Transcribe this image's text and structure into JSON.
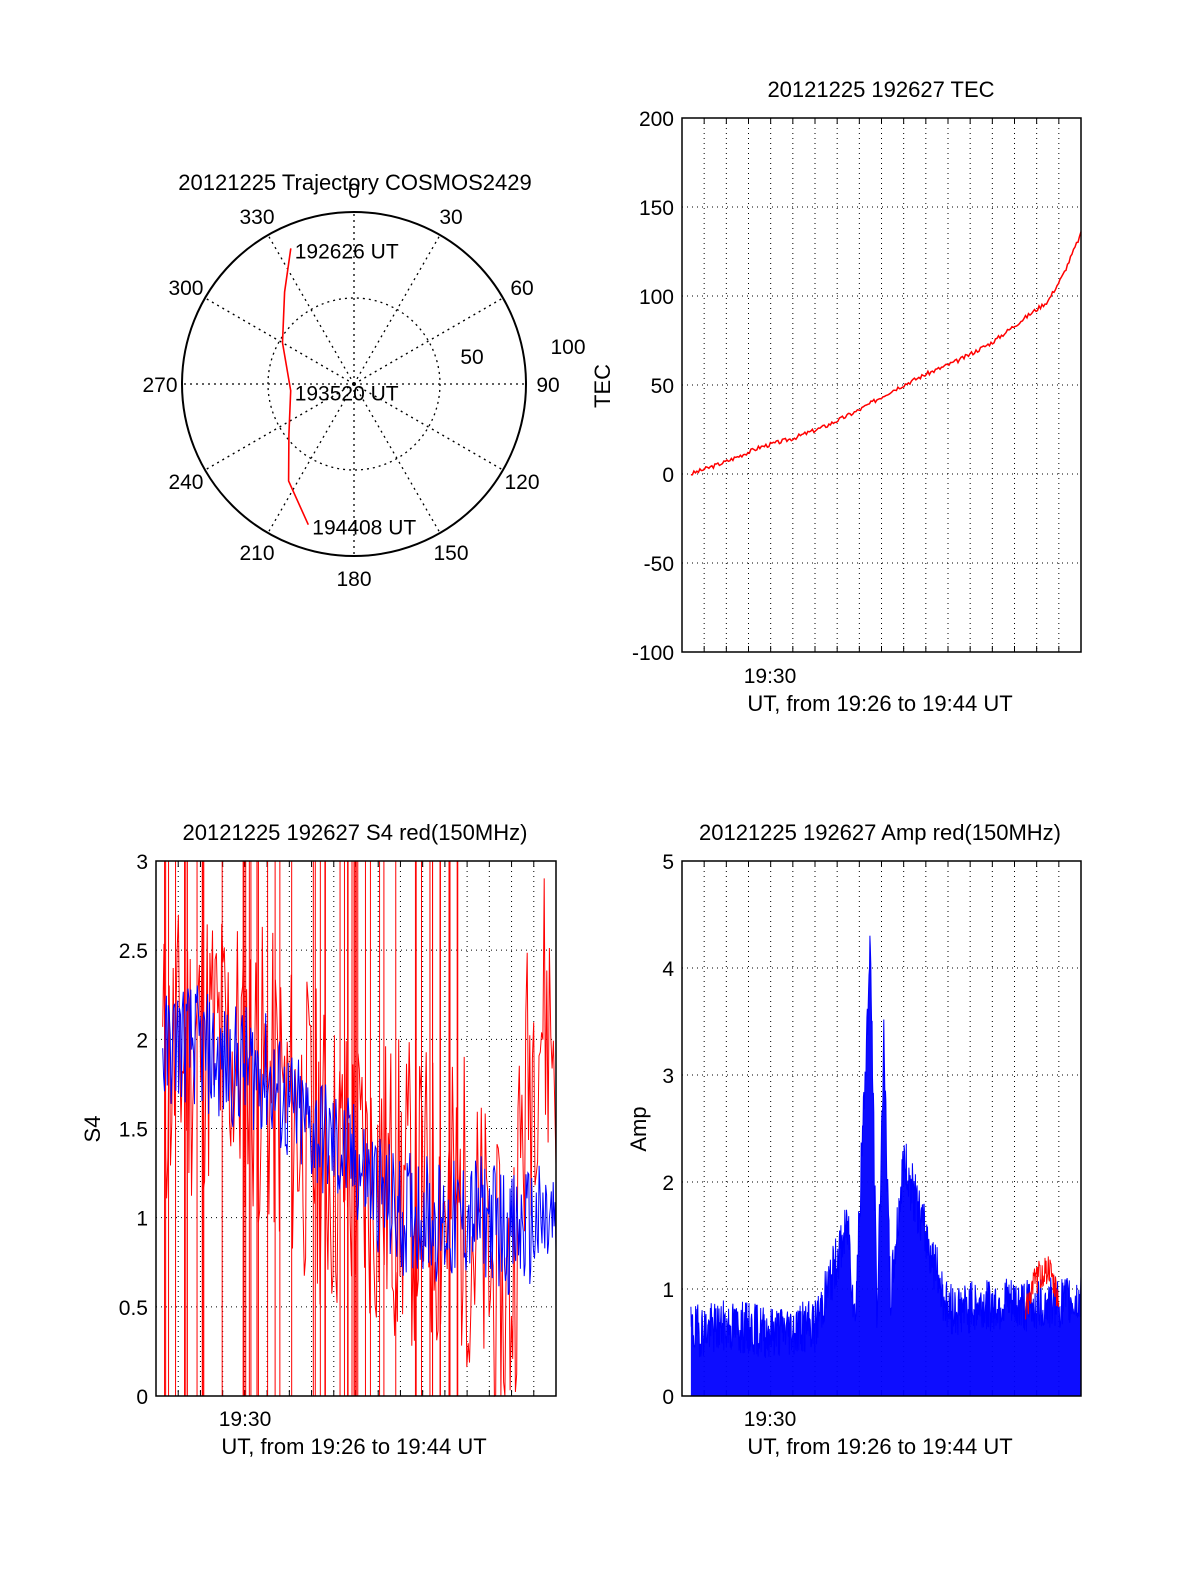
{
  "chart_data": [
    {
      "type": "polar",
      "title": "20121225 Trajectory COSMOS2429",
      "azimuth_labels": [
        "0",
        "30",
        "60",
        "90",
        "120",
        "150",
        "180",
        "210",
        "240",
        "270",
        "300",
        "330"
      ],
      "radial_labels": [
        "50",
        "100"
      ],
      "radial_range": [
        0,
        100
      ],
      "grid": true,
      "series": [
        {
          "color": "#ff0000",
          "points": [
            {
              "az": 335.0,
              "r": 87
            },
            {
              "az": 323.0,
              "r": 67
            },
            {
              "az": 300.0,
              "r": 48
            },
            {
              "az": 264.0,
              "r": 37
            },
            {
              "az": 232.0,
              "r": 48
            },
            {
              "az": 214.0,
              "r": 68
            },
            {
              "az": 198.0,
              "r": 86
            }
          ]
        }
      ],
      "annotations": [
        {
          "text": "192626 UT",
          "az": 335.0,
          "r": 87
        },
        {
          "text": "193520 UT",
          "az": 264.0,
          "r": 37
        },
        {
          "text": "194408 UT",
          "az": 198.0,
          "r": 86
        }
      ]
    },
    {
      "type": "line",
      "title": "20121225 192627 TEC",
      "ylabel": "TEC",
      "xlabel": "UT, from 19:26 to 19:44 UT",
      "x_tick_label": "19:30",
      "xlim_minutes": [
        26.0,
        44.0
      ],
      "x_tick_minute": 30.0,
      "ylim": [
        -100,
        200
      ],
      "yticks": [
        "200",
        "150",
        "100",
        "50",
        "0",
        "-50",
        "-100"
      ],
      "grid": true,
      "series": [
        {
          "color": "#ff0000",
          "x_minute": [
            26.4,
            28.0,
            29.5,
            31.0,
            32.5,
            34.0,
            35.5,
            37.0,
            38.5,
            40.0,
            41.5,
            42.5,
            43.2,
            44.0
          ],
          "y": [
            0,
            7,
            15,
            20,
            27,
            36,
            47,
            56,
            64,
            74,
            88,
            97,
            112,
            135
          ]
        }
      ]
    },
    {
      "type": "line",
      "title": "20121225 192627 S4 red(150MHz)",
      "ylabel": "S4",
      "xlabel": "UT, from 19:26 to 19:44 UT",
      "x_tick_label": "19:30",
      "xlim_minutes": [
        26.0,
        44.0
      ],
      "ylim": [
        0,
        3
      ],
      "yticks": [
        "3",
        "2.5",
        "2",
        "1.5",
        "1",
        "0.5",
        "0"
      ],
      "grid": true,
      "series": [
        {
          "color": "#ff0000",
          "description_values": "noisy, frequent spikes between 0 and 3",
          "x_minute": [
            26.3,
            28.0,
            30.0,
            32.0,
            34.0,
            36.0,
            38.0,
            40.0,
            41.0,
            41.6,
            42.0,
            42.5,
            43.2,
            44.0
          ],
          "y": [
            1.8,
            2.0,
            1.9,
            1.6,
            1.3,
            1.2,
            1.1,
            1.05,
            0.7,
            0.4,
            0.6,
            1.5,
            2.2,
            2.0
          ]
        },
        {
          "color": "#0000ff",
          "x_minute": [
            26.3,
            27.0,
            28.0,
            29.0,
            30.0,
            31.0,
            32.0,
            33.0,
            34.0,
            35.0,
            36.0,
            37.0,
            38.0,
            39.0,
            40.0,
            41.0,
            42.0,
            43.0,
            44.0
          ],
          "y": [
            1.9,
            2.0,
            1.95,
            1.85,
            1.85,
            1.8,
            1.6,
            1.5,
            1.4,
            1.3,
            1.15,
            1.0,
            1.05,
            0.95,
            1.0,
            1.0,
            0.9,
            0.95,
            0.95
          ]
        }
      ]
    },
    {
      "type": "line",
      "title": "20121225 192627 Amp red(150MHz)",
      "ylabel": "Amp",
      "xlabel": "UT, from 19:26 to 19:44 UT",
      "x_tick_label": "19:30",
      "xlim_minutes": [
        26.0,
        44.0
      ],
      "ylim": [
        0,
        5
      ],
      "yticks": [
        "5",
        "4",
        "3",
        "2",
        "1",
        "0"
      ],
      "grid": true,
      "series": [
        {
          "color": "#0000ff",
          "x_minute": [
            26.4,
            28.0,
            30.0,
            32.0,
            33.5,
            33.8,
            34.5,
            34.8,
            35.1,
            35.4,
            36.0,
            38.0,
            40.0,
            42.0,
            44.0
          ],
          "y": [
            0.6,
            0.65,
            0.6,
            0.65,
            1.6,
            0.7,
            4.2,
            0.7,
            3.3,
            0.9,
            2.2,
            0.8,
            0.85,
            0.85,
            0.9
          ]
        },
        {
          "color": "#ff0000",
          "x_minute": [
            41.5,
            42.0,
            42.5,
            43.0
          ],
          "y": [
            0.85,
            1.1,
            1.2,
            0.9
          ]
        }
      ]
    }
  ]
}
